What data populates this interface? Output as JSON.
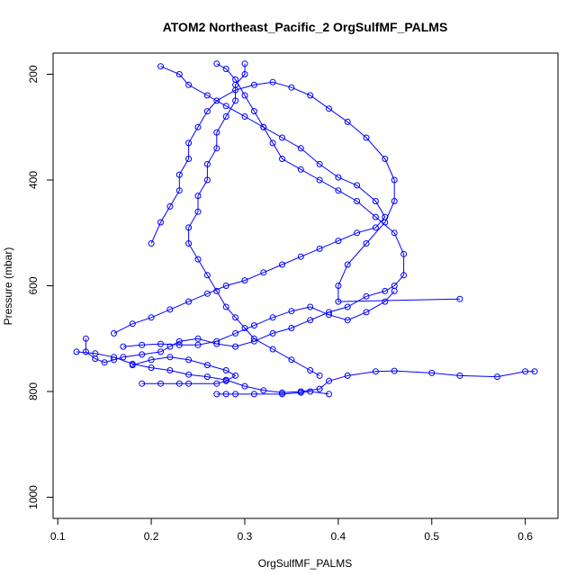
{
  "chart_data": {
    "type": "scatter",
    "title": "ATOM2 Northeast_Pacific_2 OrgSulfMF_PALMS",
    "xlabel": "OrgSulfMF_PALMS",
    "ylabel": "Pressure (mbar)",
    "xlim": [
      0.095,
      0.635
    ],
    "ylim": [
      1040,
      160
    ],
    "y_reversed": true,
    "x_ticks": [
      "0.1",
      "0.2",
      "0.3",
      "0.4",
      "0.5",
      "0.6"
    ],
    "y_ticks": [
      "200",
      "400",
      "600",
      "800",
      "1000"
    ],
    "color": "#0000ff",
    "marker": "open-circle",
    "connected": true,
    "series": [
      {
        "points": [
          [
            0.13,
            700
          ],
          [
            0.13,
            725
          ],
          [
            0.14,
            738
          ],
          [
            0.15,
            745
          ],
          [
            0.16,
            740
          ],
          [
            0.17,
            735
          ],
          [
            0.19,
            730
          ],
          [
            0.21,
            725
          ],
          [
            0.22,
            715
          ],
          [
            0.23,
            705
          ],
          [
            0.25,
            700
          ],
          [
            0.27,
            710
          ],
          [
            0.29,
            715
          ],
          [
            0.31,
            705
          ],
          [
            0.33,
            690
          ],
          [
            0.35,
            680
          ],
          [
            0.37,
            665
          ],
          [
            0.39,
            650
          ],
          [
            0.41,
            640
          ],
          [
            0.43,
            620
          ],
          [
            0.45,
            610
          ],
          [
            0.46,
            600
          ],
          [
            0.47,
            580
          ],
          [
            0.47,
            540
          ],
          [
            0.46,
            500
          ],
          [
            0.44,
            470
          ],
          [
            0.42,
            440
          ],
          [
            0.4,
            420
          ],
          [
            0.38,
            400
          ],
          [
            0.36,
            380
          ],
          [
            0.34,
            360
          ],
          [
            0.33,
            330
          ],
          [
            0.32,
            300
          ],
          [
            0.31,
            270
          ],
          [
            0.3,
            240
          ],
          [
            0.29,
            210
          ],
          [
            0.28,
            190
          ],
          [
            0.27,
            180
          ]
        ]
      },
      {
        "points": [
          [
            0.12,
            725
          ],
          [
            0.14,
            728
          ],
          [
            0.16,
            735
          ],
          [
            0.18,
            748
          ],
          [
            0.2,
            755
          ],
          [
            0.22,
            760
          ],
          [
            0.24,
            768
          ],
          [
            0.26,
            772
          ],
          [
            0.28,
            778
          ],
          [
            0.3,
            790
          ],
          [
            0.32,
            798
          ],
          [
            0.34,
            802
          ],
          [
            0.36,
            800
          ],
          [
            0.38,
            795
          ],
          [
            0.39,
            780
          ],
          [
            0.41,
            770
          ],
          [
            0.44,
            762
          ],
          [
            0.46,
            761
          ],
          [
            0.5,
            765
          ],
          [
            0.53,
            770
          ],
          [
            0.57,
            772
          ],
          [
            0.6,
            762
          ],
          [
            0.61,
            762
          ]
        ]
      },
      {
        "points": [
          [
            0.16,
            690
          ],
          [
            0.18,
            672
          ],
          [
            0.2,
            660
          ],
          [
            0.22,
            645
          ],
          [
            0.24,
            630
          ],
          [
            0.26,
            615
          ],
          [
            0.28,
            600
          ],
          [
            0.3,
            590
          ],
          [
            0.32,
            575
          ],
          [
            0.34,
            560
          ],
          [
            0.36,
            545
          ],
          [
            0.38,
            530
          ],
          [
            0.4,
            515
          ],
          [
            0.42,
            500
          ],
          [
            0.44,
            490
          ],
          [
            0.45,
            470
          ],
          [
            0.44,
            440
          ],
          [
            0.42,
            410
          ],
          [
            0.4,
            395
          ],
          [
            0.38,
            370
          ],
          [
            0.36,
            340
          ],
          [
            0.34,
            320
          ],
          [
            0.32,
            300
          ],
          [
            0.3,
            280
          ],
          [
            0.28,
            260
          ],
          [
            0.26,
            240
          ],
          [
            0.24,
            220
          ],
          [
            0.23,
            200
          ],
          [
            0.21,
            185
          ]
        ]
      },
      {
        "points": [
          [
            0.2,
            520
          ],
          [
            0.21,
            480
          ],
          [
            0.22,
            450
          ],
          [
            0.23,
            420
          ],
          [
            0.23,
            390
          ],
          [
            0.24,
            360
          ],
          [
            0.24,
            330
          ],
          [
            0.25,
            300
          ],
          [
            0.26,
            270
          ],
          [
            0.27,
            250
          ],
          [
            0.29,
            230
          ],
          [
            0.31,
            220
          ],
          [
            0.33,
            215
          ],
          [
            0.35,
            225
          ],
          [
            0.37,
            240
          ],
          [
            0.39,
            265
          ],
          [
            0.41,
            290
          ],
          [
            0.43,
            320
          ],
          [
            0.45,
            360
          ],
          [
            0.46,
            400
          ],
          [
            0.46,
            440
          ],
          [
            0.45,
            480
          ],
          [
            0.43,
            520
          ],
          [
            0.41,
            560
          ],
          [
            0.4,
            600
          ],
          [
            0.4,
            630
          ],
          [
            0.53,
            625
          ]
        ]
      },
      {
        "points": [
          [
            0.17,
            715
          ],
          [
            0.19,
            712
          ],
          [
            0.21,
            710
          ],
          [
            0.23,
            712
          ],
          [
            0.25,
            712
          ],
          [
            0.27,
            705
          ],
          [
            0.29,
            690
          ],
          [
            0.31,
            675
          ],
          [
            0.33,
            660
          ],
          [
            0.35,
            648
          ],
          [
            0.37,
            640
          ],
          [
            0.39,
            655
          ],
          [
            0.41,
            665
          ],
          [
            0.43,
            650
          ],
          [
            0.45,
            630
          ],
          [
            0.46,
            610
          ]
        ]
      },
      {
        "points": [
          [
            0.27,
            805
          ],
          [
            0.28,
            805
          ],
          [
            0.29,
            805
          ],
          [
            0.31,
            805
          ],
          [
            0.34,
            805
          ],
          [
            0.36,
            802
          ],
          [
            0.37,
            800
          ],
          [
            0.39,
            805
          ]
        ]
      },
      {
        "points": [
          [
            0.19,
            785
          ],
          [
            0.21,
            785
          ],
          [
            0.23,
            785
          ],
          [
            0.24,
            785
          ],
          [
            0.27,
            785
          ],
          [
            0.28,
            780
          ],
          [
            0.29,
            770
          ],
          [
            0.28,
            760
          ],
          [
            0.26,
            750
          ],
          [
            0.24,
            740
          ],
          [
            0.22,
            735
          ],
          [
            0.2,
            740
          ],
          [
            0.18,
            750
          ]
        ]
      },
      {
        "points": [
          [
            0.3,
            180
          ],
          [
            0.3,
            200
          ],
          [
            0.29,
            220
          ],
          [
            0.29,
            250
          ],
          [
            0.28,
            280
          ],
          [
            0.27,
            310
          ],
          [
            0.27,
            340
          ],
          [
            0.26,
            370
          ],
          [
            0.26,
            400
          ],
          [
            0.25,
            430
          ],
          [
            0.25,
            460
          ],
          [
            0.24,
            490
          ],
          [
            0.24,
            520
          ],
          [
            0.25,
            550
          ],
          [
            0.26,
            580
          ],
          [
            0.27,
            610
          ],
          [
            0.28,
            640
          ],
          [
            0.29,
            660
          ],
          [
            0.3,
            680
          ],
          [
            0.31,
            700
          ],
          [
            0.33,
            720
          ],
          [
            0.35,
            740
          ],
          [
            0.37,
            760
          ],
          [
            0.38,
            770
          ]
        ]
      }
    ]
  }
}
